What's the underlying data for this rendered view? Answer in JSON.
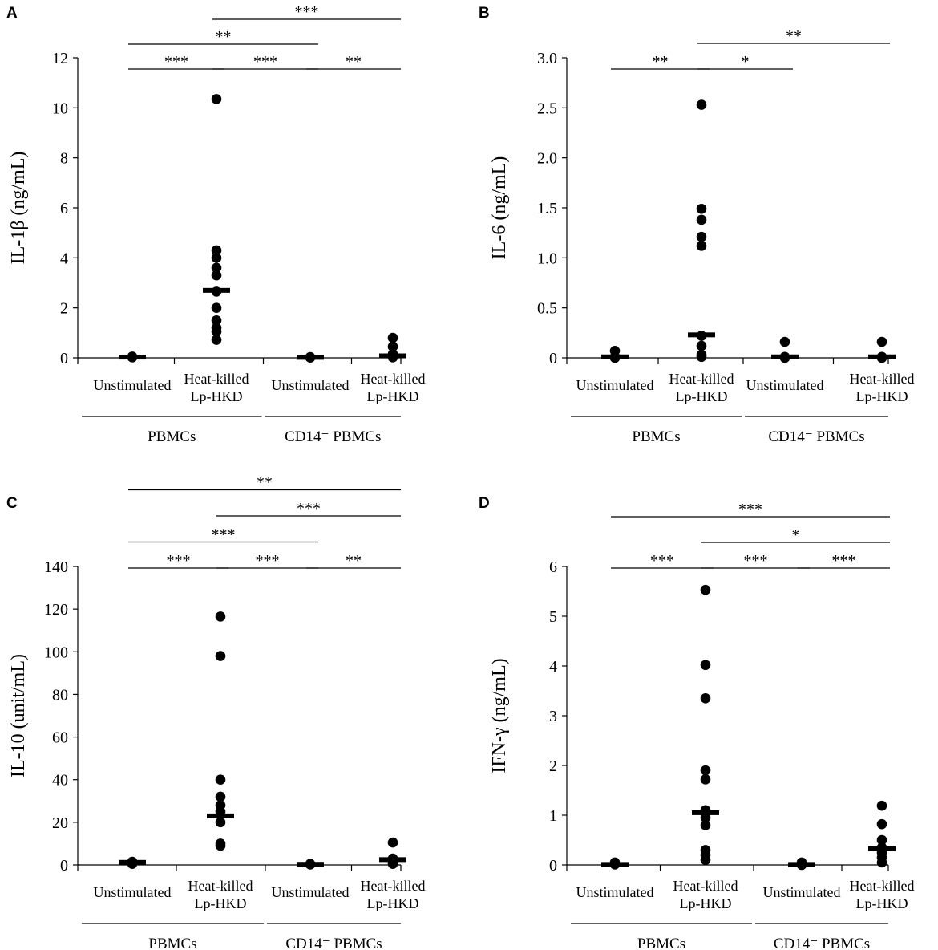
{
  "chart_data": [
    {
      "type": "scatter",
      "panel": "A",
      "ylabel": "IL-1β (ng/mL)",
      "ylim": [
        0,
        12
      ],
      "yticks": [
        0,
        2,
        4,
        6,
        8,
        10,
        12
      ],
      "yticklabels": [
        "0",
        "2",
        "4",
        "6",
        "8",
        "10",
        "12"
      ],
      "categories": [
        {
          "label": "Unstimulated",
          "points": [
            0.02,
            0.03,
            0.04,
            0.05
          ],
          "median": 0.03
        },
        {
          "label": "Heat-killed\nLp-HKD",
          "points": [
            10.35,
            4.3,
            4.0,
            3.6,
            3.3,
            2.65,
            2.0,
            1.5,
            1.2,
            1.05,
            0.72
          ],
          "median": 2.7
        },
        {
          "label": "Unstimulated",
          "points": [
            0.01,
            0.02,
            0.03
          ],
          "median": 0.02
        },
        {
          "label": "Heat-killed\nLp-HKD",
          "points": [
            0.8,
            0.45,
            0.15,
            0.05,
            0.02
          ],
          "median": 0.08
        }
      ],
      "groups": [
        {
          "label": "PBMCs",
          "span": [
            0,
            1
          ]
        },
        {
          "label": "CD14⁻ PBMCs",
          "span": [
            2,
            3
          ]
        }
      ],
      "significance": [
        {
          "from": 0,
          "to": 1,
          "label": "***",
          "level": 0
        },
        {
          "from": 1,
          "to": 2,
          "label": "***",
          "level": 0
        },
        {
          "from": 2,
          "to": 3,
          "label": "**",
          "level": 0
        },
        {
          "from": 0,
          "to": 2,
          "label": "**",
          "level": 1
        },
        {
          "from": 1,
          "to": 3,
          "label": "***",
          "level": 2
        }
      ]
    },
    {
      "type": "scatter",
      "panel": "B",
      "ylabel": "IL-6 (ng/mL)",
      "ylim": [
        0,
        3
      ],
      "yticks": [
        0,
        0.5,
        1,
        1.5,
        2,
        2.5,
        3
      ],
      "yticklabels": [
        "0",
        "0.5",
        "1.0",
        "1.5",
        "2.0",
        "2.5",
        "3.0"
      ],
      "categories": [
        {
          "label": "Unstimulated",
          "points": [
            0.07,
            0.01,
            0.0
          ],
          "median": 0.01
        },
        {
          "label": "Heat-killed\nLp-HKD",
          "points": [
            2.53,
            1.49,
            1.38,
            1.21,
            1.12,
            0.22,
            0.12,
            0.03,
            0.01
          ],
          "median": 0.23
        },
        {
          "label": "Unstimulated",
          "points": [
            0.16,
            0.01,
            0.0
          ],
          "median": 0.01
        },
        {
          "label": "Heat-killed\nLp-HKD",
          "points": [
            0.16,
            0.01,
            0.0
          ],
          "median": 0.01
        }
      ],
      "groups": [
        {
          "label": "PBMCs",
          "span": [
            0,
            1
          ]
        },
        {
          "label": "CD14⁻ PBMCs",
          "span": [
            2,
            3
          ]
        }
      ],
      "significance": [
        {
          "from": 0,
          "to": 1,
          "label": "**",
          "level": 0
        },
        {
          "from": 1,
          "to": 2,
          "label": "*",
          "level": 0
        },
        {
          "from": 1,
          "to": 3,
          "label": "**",
          "level": 1
        }
      ]
    },
    {
      "type": "scatter",
      "panel": "C",
      "ylabel": "IL-10 (unit/mL)",
      "ylim": [
        0,
        140
      ],
      "yticks": [
        0,
        20,
        40,
        60,
        80,
        100,
        120,
        140
      ],
      "yticklabels": [
        "0",
        "20",
        "40",
        "60",
        "80",
        "100",
        "120",
        "140"
      ],
      "categories": [
        {
          "label": "Unstimulated",
          "points": [
            1.5,
            1.0,
            0.5
          ],
          "median": 1.2
        },
        {
          "label": "Heat-killed\nLp-HKD",
          "points": [
            116.5,
            98.0,
            40.0,
            32.0,
            28.0,
            25.0,
            20.0,
            10.0,
            9.0
          ],
          "median": 23.0
        },
        {
          "label": "Unstimulated",
          "points": [
            0.5,
            0.2
          ],
          "median": 0.3
        },
        {
          "label": "Heat-killed\nLp-HKD",
          "points": [
            10.5,
            3.0,
            1.5,
            0.5
          ],
          "median": 2.5
        }
      ],
      "groups": [
        {
          "label": "PBMCs",
          "span": [
            0,
            1
          ]
        },
        {
          "label": "CD14⁻ PBMCs",
          "span": [
            2,
            3
          ]
        }
      ],
      "significance": [
        {
          "from": 0,
          "to": 1,
          "label": "***",
          "level": 0
        },
        {
          "from": 1,
          "to": 2,
          "label": "***",
          "level": 0
        },
        {
          "from": 2,
          "to": 3,
          "label": "**",
          "level": 0
        },
        {
          "from": 0,
          "to": 2,
          "label": "***",
          "level": 1
        },
        {
          "from": 1,
          "to": 3,
          "label": "***",
          "level": 2
        },
        {
          "from": 0,
          "to": 3,
          "label": "**",
          "level": 3
        }
      ]
    },
    {
      "type": "scatter",
      "panel": "D",
      "ylabel": "IFN-γ (ng/mL)",
      "ylim": [
        0,
        6
      ],
      "yticks": [
        0,
        1,
        2,
        3,
        4,
        5,
        6
      ],
      "yticklabels": [
        "0",
        "1",
        "2",
        "3",
        "4",
        "5",
        "6"
      ],
      "categories": [
        {
          "label": "Unstimulated",
          "points": [
            0.05,
            0.02,
            0.01
          ],
          "median": 0.01
        },
        {
          "label": "Heat-killed\nLp-HKD",
          "points": [
            5.53,
            4.02,
            3.35,
            1.9,
            1.72,
            1.1,
            0.95,
            0.8,
            0.3,
            0.2,
            0.1
          ],
          "median": 1.05
        },
        {
          "label": "Unstimulated",
          "points": [
            0.05,
            0.02,
            0.0
          ],
          "median": 0.01
        },
        {
          "label": "Heat-killed\nLp-HKD",
          "points": [
            1.19,
            0.82,
            0.5,
            0.35,
            0.25,
            0.15,
            0.05
          ],
          "median": 0.33
        }
      ],
      "groups": [
        {
          "label": "PBMCs",
          "span": [
            0,
            1
          ]
        },
        {
          "label": "CD14⁻ PBMCs",
          "span": [
            2,
            3
          ]
        }
      ],
      "significance": [
        {
          "from": 0,
          "to": 1,
          "label": "***",
          "level": 0
        },
        {
          "from": 1,
          "to": 2,
          "label": "***",
          "level": 0
        },
        {
          "from": 2,
          "to": 3,
          "label": "***",
          "level": 0
        },
        {
          "from": 1,
          "to": 3,
          "label": "*",
          "level": 1
        },
        {
          "from": 0,
          "to": 3,
          "label": "***",
          "level": 2
        }
      ]
    }
  ]
}
